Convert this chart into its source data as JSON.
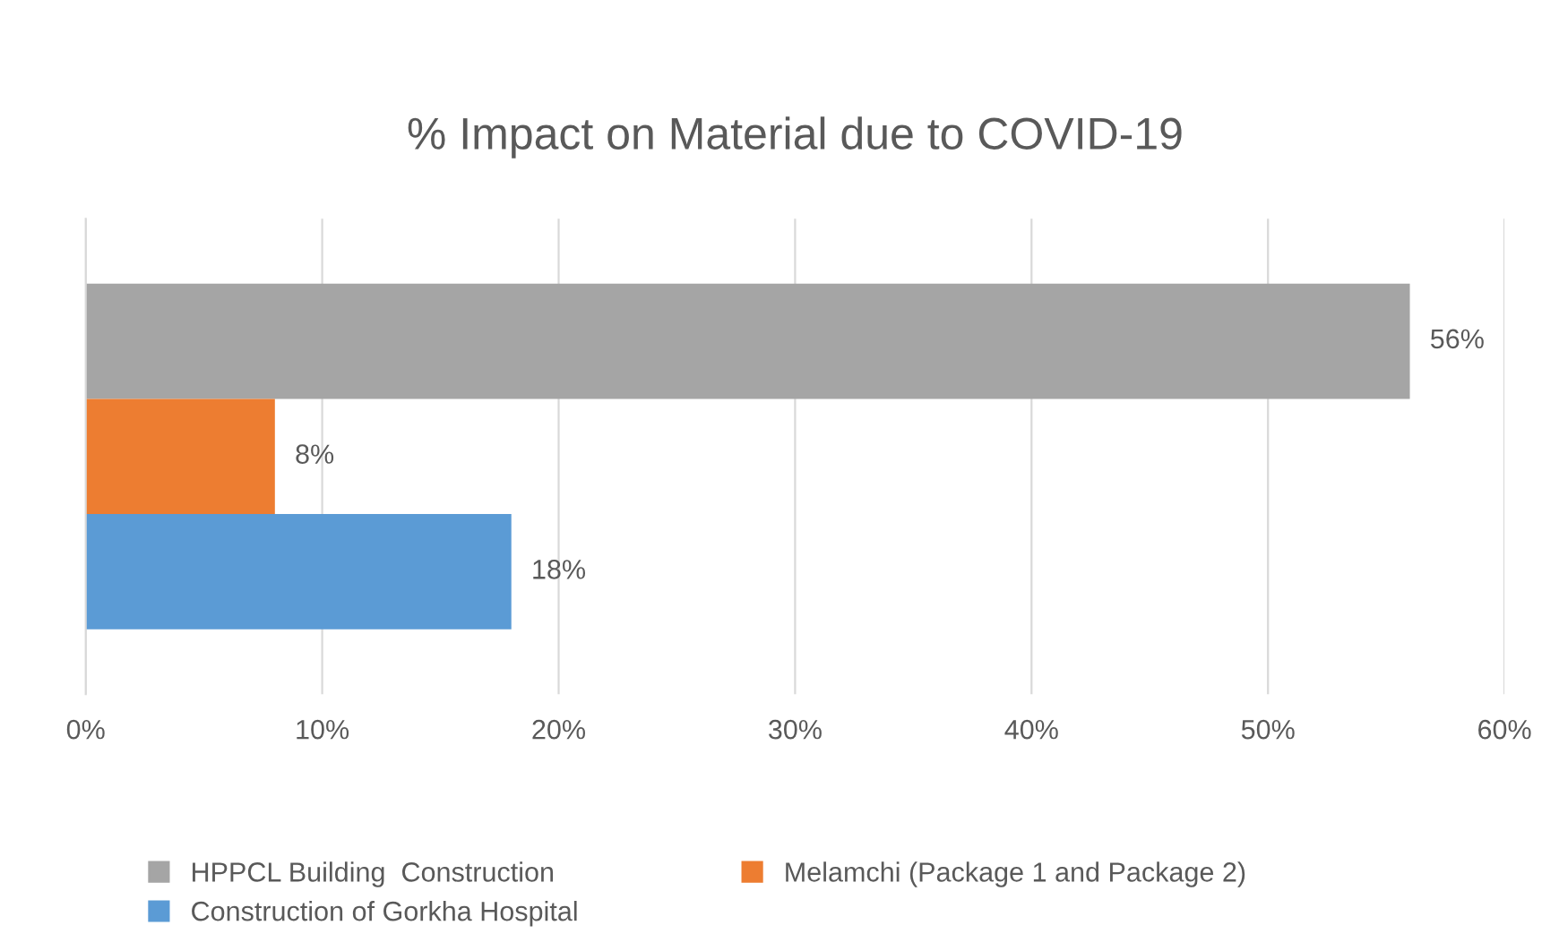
{
  "chart_data": {
    "type": "bar",
    "orientation": "horizontal",
    "title": "% Impact on Material due to COVID-19",
    "categories": [
      null
    ],
    "series": [
      {
        "name": "HPPCL Building  Construction",
        "color": "#a5a5a5",
        "values": [
          56
        ],
        "value_labels": [
          "56%"
        ]
      },
      {
        "name": "Melamchi (Package 1 and Package 2)",
        "color": "#ed7d31",
        "values": [
          8
        ],
        "value_labels": [
          "8%"
        ]
      },
      {
        "name": "Construction of Gorkha Hospital",
        "color": "#5b9bd5",
        "values": [
          18
        ],
        "value_labels": [
          "18%"
        ]
      }
    ],
    "xlim": [
      0,
      60
    ],
    "xticks": [
      {
        "value": 0,
        "label": "0%"
      },
      {
        "value": 10,
        "label": "10%"
      },
      {
        "value": 20,
        "label": "20%"
      },
      {
        "value": 30,
        "label": "30%"
      },
      {
        "value": 40,
        "label": "40%"
      },
      {
        "value": 50,
        "label": "50%"
      },
      {
        "value": 60,
        "label": "60%"
      }
    ],
    "grid": "x",
    "legend": "bottom"
  }
}
